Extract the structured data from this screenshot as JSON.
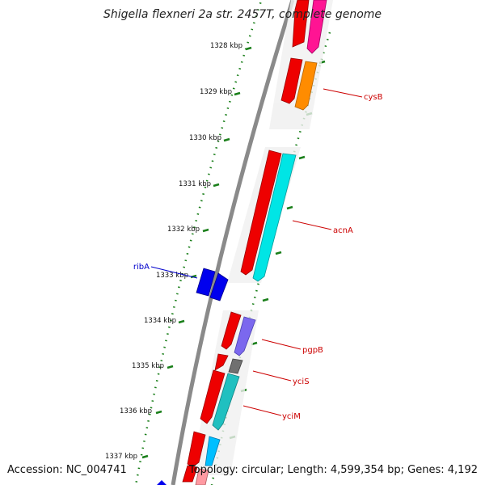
{
  "title": "Shigella flexneri 2a str. 2457T, complete genome",
  "footer": {
    "accession": "Accession: NC_004741",
    "topology": "Topology: circular; Length: 4,599,354 bp; Genes: 4,192"
  },
  "colors": {
    "backbone": "#8a8a8a",
    "ticks": "#1a7f1a",
    "label_red": "#cc0000",
    "label_blue": "#0000cc"
  },
  "scale": {
    "ticks": [
      "1328 kbp",
      "1329 kbp",
      "1330 kbp",
      "1331 kbp",
      "1332 kbp",
      "1333 kbp",
      "1334 kbp",
      "1335 kbp",
      "1336 kbp",
      "1337 kbp"
    ]
  },
  "genes": [
    {
      "name": "cysB",
      "color": "#ff8c00"
    },
    {
      "name": "acnA",
      "color": "#00e5e5"
    },
    {
      "name": "ribA",
      "color": "#0000ee"
    },
    {
      "name": "pgpB",
      "color": "#7b68ee"
    },
    {
      "name": "yciS",
      "color": "#707070"
    },
    {
      "name": "yciM",
      "color": "#20c0c0"
    }
  ]
}
